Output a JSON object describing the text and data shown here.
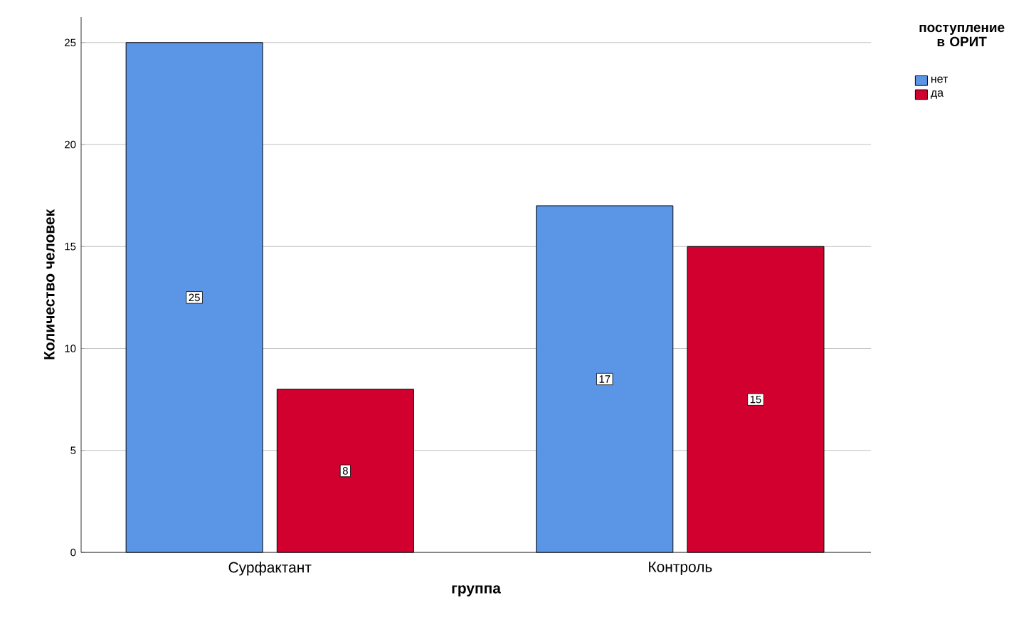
{
  "chart_data": {
    "type": "bar",
    "xlabel": "группа",
    "ylabel": "Количество человек",
    "legend_title": "поступление в ОРИТ",
    "categories": [
      "Сурфактант",
      "Контроль"
    ],
    "series": [
      {
        "name": "нет",
        "color": "#5b96e6",
        "values": [
          25,
          17
        ]
      },
      {
        "name": "да",
        "color": "#d2002e",
        "values": [
          8,
          15
        ]
      }
    ],
    "ylim": [
      0,
      26.25
    ],
    "yticks": [
      0,
      5,
      10,
      15,
      20,
      25
    ],
    "grid": "y",
    "legend": "top right",
    "data_labels": true
  }
}
